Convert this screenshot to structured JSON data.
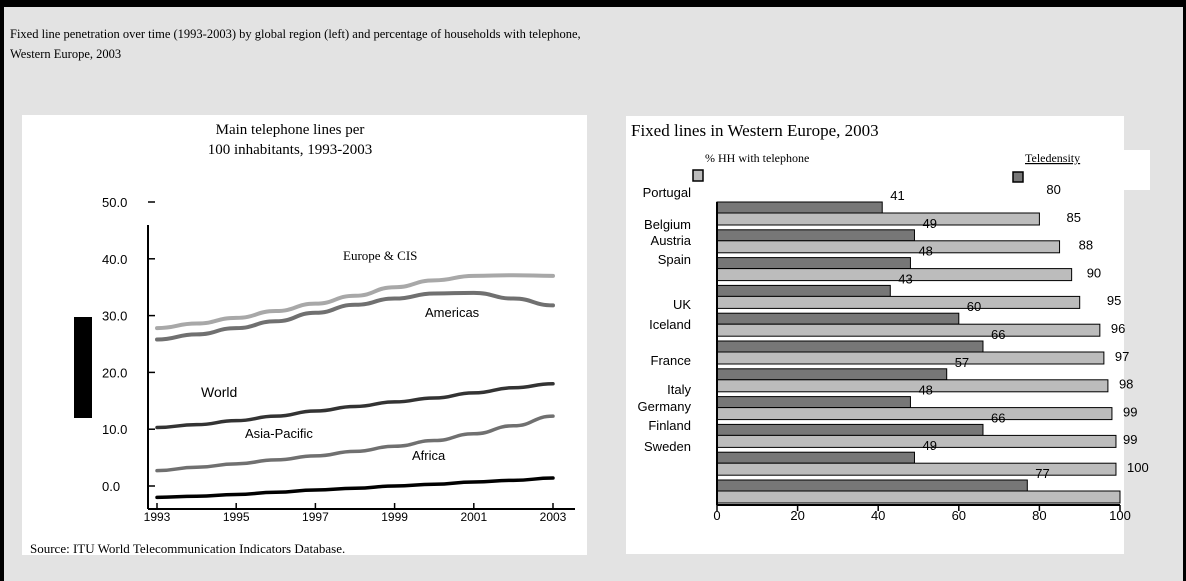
{
  "caption": {
    "line1": "Fixed line penetration over time (1993-2003) by global region (left) and percentage of households with telephone,",
    "line2": "Western Europe, 2003"
  },
  "source": "Source: ITU World Telecommunication Indicators Database.",
  "chart_data": [
    {
      "type": "line",
      "title_line1": "Main telephone lines per",
      "title_line2": "100 inhabitants, 1993-2003",
      "x": [
        1993,
        1994,
        1995,
        1996,
        1997,
        1998,
        1999,
        2000,
        2001,
        2002,
        2003
      ],
      "x_tick_labels": [
        "1993",
        "1995",
        "1997",
        "1999",
        "2001",
        "2003"
      ],
      "y_tick_labels": [
        "0.0",
        "10.0",
        "20.0",
        "30.0",
        "40.0",
        "50.0"
      ],
      "ylim": [
        0,
        50
      ],
      "grid": false,
      "series": [
        {
          "name": "Europe & CIS",
          "color": "#a8a8a8",
          "values": [
            27.8,
            28.6,
            29.6,
            30.8,
            32.1,
            33.5,
            35.0,
            36.2,
            37.0,
            37.1,
            37.0
          ]
        },
        {
          "name": "Americas",
          "color": "#707070",
          "values": [
            25.8,
            26.7,
            27.8,
            29.0,
            30.5,
            31.9,
            33.0,
            33.9,
            34.0,
            33.0,
            31.8
          ]
        },
        {
          "name": "World",
          "color": "#000000",
          "values": null
        },
        {
          "name": "Asia-Pacific",
          "color": "#333333",
          "values": [
            10.3,
            10.8,
            11.5,
            12.3,
            13.2,
            14.0,
            14.8,
            15.5,
            16.4,
            17.3,
            18.0
          ]
        },
        {
          "name": "Africa",
          "color": "#707070",
          "values": [
            2.7,
            3.3,
            3.9,
            4.6,
            5.3,
            6.1,
            7.0,
            8.0,
            9.2,
            10.6,
            12.3
          ]
        },
        {
          "name": "",
          "color": "#000000",
          "values": [
            -2.0,
            -1.8,
            -1.5,
            -1.1,
            -0.7,
            -0.4,
            0.0,
            0.3,
            0.7,
            1.0,
            1.4
          ]
        }
      ],
      "legend": "none"
    },
    {
      "type": "bar",
      "orientation": "horizontal",
      "title": "Fixed lines in Western Europe, 2003",
      "legend": [
        {
          "label": "% HH with telephone",
          "color": "#bcbcbc"
        },
        {
          "label": "Teledensity",
          "color": "#777777"
        }
      ],
      "country_labels": [
        "Portugal",
        "Belgium",
        "Austria",
        "Spain",
        "UK",
        "Iceland",
        "France",
        "Italy",
        "Germany",
        "Finland",
        "Sweden"
      ],
      "xlim": [
        0,
        100
      ],
      "x_tick_labels": [
        "0",
        "20",
        "40",
        "60",
        "80",
        "100"
      ],
      "series": [
        {
          "name": "Teledensity",
          "color": "#777777",
          "values": [
            41,
            49,
            48,
            43,
            60,
            66,
            57,
            48,
            66,
            49,
            77
          ]
        },
        {
          "name": "% HH with telephone",
          "color": "#bcbcbc",
          "values": [
            80,
            85,
            88,
            90,
            95,
            96,
            97,
            98,
            99,
            99,
            100
          ]
        }
      ]
    }
  ]
}
